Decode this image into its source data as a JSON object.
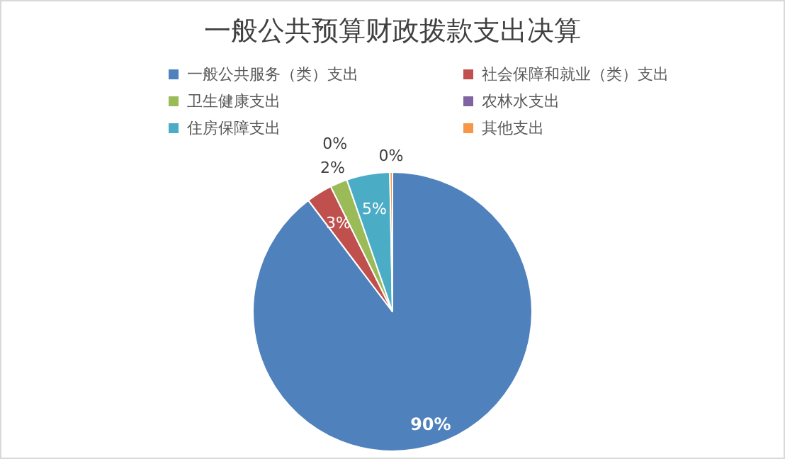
{
  "chart_data": {
    "type": "pie",
    "title": "一般公共预算财政拨款支出决算",
    "categories": [
      "一般公共服务（类）支出",
      "社会保障和就业（类）支出",
      "卫生健康支出",
      "农林水支出",
      "住房保障支出",
      "其他支出"
    ],
    "values": [
      89.7,
      3,
      2,
      0,
      5,
      0.3
    ],
    "value_labels": [
      "90%",
      "3%",
      "2%",
      "0%",
      "5%",
      "0%"
    ],
    "colors": [
      "#4f81bd",
      "#c0504d",
      "#9bbb59",
      "#8064a2",
      "#4bacc6",
      "#f79646"
    ],
    "legend": "top"
  }
}
